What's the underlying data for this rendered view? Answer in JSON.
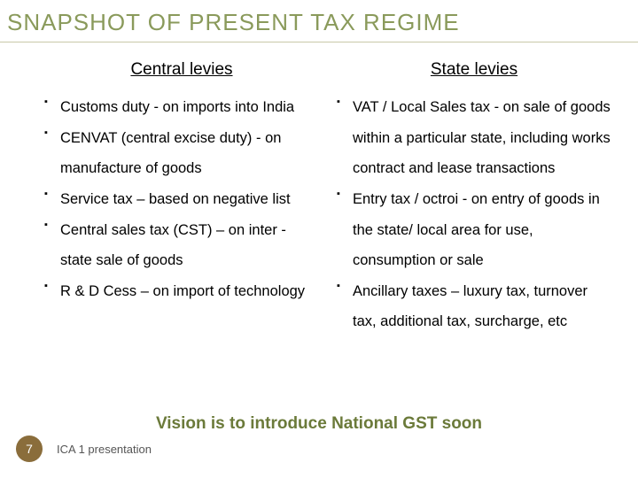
{
  "title": "SNAPSHOT OF PRESENT TAX REGIME",
  "columns": {
    "left": {
      "header": "Central levies",
      "items": [
        "Customs duty - on imports into India",
        "CENVAT (central excise duty) - on manufacture of goods",
        "Service tax – based on negative list",
        "Central sales tax (CST) – on inter - state sale of goods",
        "R & D Cess – on import of technology"
      ]
    },
    "right": {
      "header": "State levies",
      "items": [
        "VAT / Local Sales tax - on sale of goods within a particular state, including works contract and lease transactions",
        "Entry tax / octroi - on entry of goods in the state/ local area for use, consumption or sale",
        "Ancillary taxes – luxury tax, turnover tax, additional tax, surcharge, etc"
      ]
    }
  },
  "vision": "Vision is to introduce National GST soon",
  "page_number": "7",
  "footer_label": "ICA 1 presentation",
  "colors": {
    "title_color": "#8a9a5b",
    "vision_color": "#6b7a3a",
    "badge_bg": "#8a6d3b",
    "rule_color": "#c8c8a8"
  }
}
